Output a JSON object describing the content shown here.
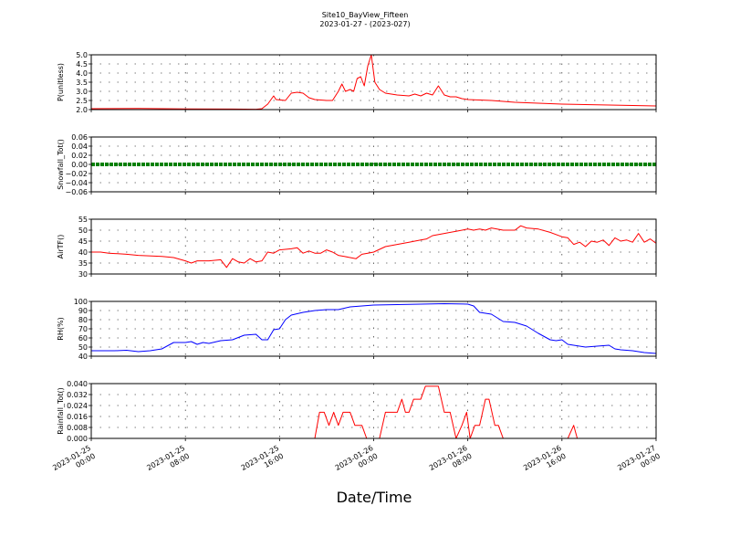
{
  "chart_data": {
    "type": "line",
    "title": "Site10_BayView_Fifteen",
    "subtitle": "2023-01-27 - (2023-027)",
    "xlabel": "Date/Time",
    "xlim": [
      "2023-01-25 00:00",
      "2023-01-27 00:00"
    ],
    "grid": true,
    "x_ticks": [
      {
        "value": 0,
        "line1": "2023-01-25",
        "line2": "00:00"
      },
      {
        "value": 8,
        "line1": "2023-01-25",
        "line2": "08:00"
      },
      {
        "value": 16,
        "line1": "2023-01-25",
        "line2": "16:00"
      },
      {
        "value": 24,
        "line1": "2023-01-26",
        "line2": "00:00"
      },
      {
        "value": 32,
        "line1": "2023-01-26",
        "line2": "08:00"
      },
      {
        "value": 40,
        "line1": "2023-01-26",
        "line2": "16:00"
      },
      {
        "value": 48,
        "line1": "2023-01-27",
        "line2": "00:00"
      }
    ],
    "panels": [
      {
        "ylabel": "P(unitless)",
        "ylim": [
          2.0,
          5.0
        ],
        "yticks": [
          "2.0",
          "2.5",
          "3.0",
          "3.5",
          "4.0",
          "4.5",
          "5.0"
        ],
        "color": "#ff0000",
        "marker": "line",
        "points": [
          [
            0,
            2.05
          ],
          [
            4,
            2.06
          ],
          [
            8,
            2.04
          ],
          [
            12,
            2.03
          ],
          [
            14,
            2.02
          ],
          [
            14.5,
            2.05
          ],
          [
            15,
            2.3
          ],
          [
            15.5,
            2.75
          ],
          [
            15.7,
            2.55
          ],
          [
            16.5,
            2.5
          ],
          [
            17,
            2.9
          ],
          [
            17.5,
            2.95
          ],
          [
            18,
            2.9
          ],
          [
            18.5,
            2.65
          ],
          [
            19,
            2.55
          ],
          [
            20,
            2.5
          ],
          [
            20.5,
            2.5
          ],
          [
            21,
            3.0
          ],
          [
            21.3,
            3.4
          ],
          [
            21.6,
            3.0
          ],
          [
            22,
            3.1
          ],
          [
            22.3,
            3.0
          ],
          [
            22.6,
            3.7
          ],
          [
            22.9,
            3.8
          ],
          [
            23.2,
            3.3
          ],
          [
            23.5,
            4.4
          ],
          [
            23.8,
            5.0
          ],
          [
            24.1,
            3.5
          ],
          [
            24.5,
            3.1
          ],
          [
            25,
            2.9
          ],
          [
            26,
            2.8
          ],
          [
            27,
            2.75
          ],
          [
            27.5,
            2.85
          ],
          [
            28,
            2.75
          ],
          [
            28.5,
            2.9
          ],
          [
            29,
            2.8
          ],
          [
            29.5,
            3.3
          ],
          [
            30,
            2.8
          ],
          [
            30.5,
            2.7
          ],
          [
            31,
            2.7
          ],
          [
            31.5,
            2.6
          ],
          [
            32,
            2.55
          ],
          [
            34,
            2.5
          ],
          [
            36,
            2.4
          ],
          [
            40,
            2.3
          ],
          [
            44,
            2.25
          ],
          [
            48,
            2.2
          ]
        ]
      },
      {
        "ylabel": "Snowfall_Tot()",
        "ylim": [
          -0.06,
          0.06
        ],
        "yticks": [
          "−0.06",
          "−0.04",
          "−0.02",
          "0.00",
          "0.02",
          "0.04",
          "0.06"
        ],
        "color": "#008000",
        "marker": "dots",
        "points": [
          [
            0,
            0.0
          ],
          [
            48,
            0.0
          ]
        ]
      },
      {
        "ylabel": "AirTF()",
        "ylim": [
          30,
          55
        ],
        "yticks": [
          "30",
          "35",
          "40",
          "45",
          "50",
          "55"
        ],
        "color": "#ff0000",
        "marker": "line",
        "points": [
          [
            0,
            40
          ],
          [
            0.8,
            40
          ],
          [
            1.5,
            39.5
          ],
          [
            3,
            39
          ],
          [
            4,
            38.5
          ],
          [
            6,
            38
          ],
          [
            7,
            37.5
          ],
          [
            8,
            36
          ],
          [
            8.5,
            35
          ],
          [
            9,
            36
          ],
          [
            10,
            36
          ],
          [
            11,
            36.5
          ],
          [
            11.5,
            33
          ],
          [
            12,
            37
          ],
          [
            12.5,
            35.5
          ],
          [
            13,
            35
          ],
          [
            13.5,
            37
          ],
          [
            14,
            35.5
          ],
          [
            14.5,
            36
          ],
          [
            15,
            40
          ],
          [
            15.5,
            39.5
          ],
          [
            16,
            41
          ],
          [
            17,
            41.5
          ],
          [
            17.5,
            42
          ],
          [
            18,
            39.5
          ],
          [
            18.5,
            40.5
          ],
          [
            19,
            39.5
          ],
          [
            19.5,
            39.5
          ],
          [
            20,
            41
          ],
          [
            20.5,
            40
          ],
          [
            21,
            38.5
          ],
          [
            21.5,
            38
          ],
          [
            22,
            37.5
          ],
          [
            22.5,
            37
          ],
          [
            23,
            39
          ],
          [
            23.5,
            39.5
          ],
          [
            24,
            40
          ],
          [
            25,
            42.5
          ],
          [
            26,
            43.5
          ],
          [
            27,
            44.5
          ],
          [
            28,
            45.5
          ],
          [
            28.5,
            46
          ],
          [
            29,
            47.5
          ],
          [
            30,
            48.5
          ],
          [
            31,
            49.5
          ],
          [
            32,
            50.5
          ],
          [
            32.5,
            50
          ],
          [
            33,
            50.5
          ],
          [
            33.5,
            50
          ],
          [
            34,
            51
          ],
          [
            35,
            50
          ],
          [
            36,
            50
          ],
          [
            36.5,
            52
          ],
          [
            37,
            51
          ],
          [
            38,
            50.5
          ],
          [
            39,
            49
          ],
          [
            40,
            47
          ],
          [
            40.5,
            46.5
          ],
          [
            41,
            43.5
          ],
          [
            41.5,
            44.5
          ],
          [
            42,
            42.5
          ],
          [
            42.5,
            45
          ],
          [
            43,
            44.5
          ],
          [
            43.5,
            45.5
          ],
          [
            44,
            43
          ],
          [
            44.5,
            46.5
          ],
          [
            45,
            45
          ],
          [
            45.5,
            45.5
          ],
          [
            46,
            44.5
          ],
          [
            46.5,
            48.5
          ],
          [
            47,
            44.5
          ],
          [
            47.5,
            46
          ],
          [
            48,
            44
          ]
        ],
        "note": "x in hours after 2023-01-25 00:00"
      },
      {
        "ylabel": "RH(%)",
        "ylim": [
          40,
          100
        ],
        "yticks": [
          "40",
          "50",
          "60",
          "70",
          "80",
          "90",
          "100"
        ],
        "color": "#0000ff",
        "marker": "line",
        "points": [
          [
            0,
            46
          ],
          [
            2,
            46
          ],
          [
            3,
            46.5
          ],
          [
            4,
            45
          ],
          [
            5,
            46
          ],
          [
            6,
            48
          ],
          [
            7,
            55
          ],
          [
            8,
            55
          ],
          [
            8.5,
            56
          ],
          [
            9,
            53
          ],
          [
            9.5,
            55
          ],
          [
            10,
            54
          ],
          [
            11,
            57
          ],
          [
            12,
            58
          ],
          [
            13,
            63
          ],
          [
            14,
            64
          ],
          [
            14.5,
            58
          ],
          [
            15,
            58
          ],
          [
            15.5,
            69
          ],
          [
            16,
            70
          ],
          [
            16.5,
            80
          ],
          [
            17,
            85
          ],
          [
            18,
            88
          ],
          [
            19,
            90
          ],
          [
            20,
            91
          ],
          [
            21,
            91
          ],
          [
            22,
            94
          ],
          [
            23,
            95
          ],
          [
            24,
            96
          ],
          [
            26,
            96.5
          ],
          [
            28,
            97
          ],
          [
            30,
            97.5
          ],
          [
            32,
            97
          ],
          [
            32.5,
            95
          ],
          [
            33,
            88
          ],
          [
            34,
            86
          ],
          [
            35,
            78
          ],
          [
            36,
            77
          ],
          [
            37,
            73
          ],
          [
            38,
            65
          ],
          [
            39,
            58
          ],
          [
            39.5,
            57
          ],
          [
            40,
            58
          ],
          [
            40.5,
            53
          ],
          [
            41,
            52
          ],
          [
            42,
            50
          ],
          [
            43,
            51
          ],
          [
            44,
            52
          ],
          [
            44.5,
            48
          ],
          [
            45,
            47
          ],
          [
            46,
            46
          ],
          [
            47,
            44
          ],
          [
            48,
            43
          ],
          [
            49,
            44
          ],
          [
            50,
            47
          ],
          [
            51,
            48
          ],
          [
            52,
            52
          ]
        ]
      },
      {
        "ylabel": "Rainfall_Tot()",
        "ylim": [
          0.0,
          0.042
        ],
        "yticks": [
          "0.000",
          "0.008",
          "0.016",
          "0.024",
          "0.032",
          "0.040"
        ],
        "color": "#ff0000",
        "marker": "line",
        "points": [
          [
            0,
            0
          ],
          [
            19,
            0
          ],
          [
            19.4,
            0.02
          ],
          [
            19.8,
            0.02
          ],
          [
            20.2,
            0.01
          ],
          [
            20.6,
            0.02
          ],
          [
            21,
            0.01
          ],
          [
            21.4,
            0.02
          ],
          [
            22,
            0.02
          ],
          [
            22.4,
            0.01
          ],
          [
            23,
            0.01
          ],
          [
            23.4,
            0
          ],
          [
            24.5,
            0
          ],
          [
            25,
            0.02
          ],
          [
            25.5,
            0.02
          ],
          [
            26,
            0.02
          ],
          [
            26.4,
            0.03
          ],
          [
            26.7,
            0.02
          ],
          [
            27,
            0.02
          ],
          [
            27.4,
            0.03
          ],
          [
            28,
            0.03
          ],
          [
            28.4,
            0.04
          ],
          [
            29,
            0.04
          ],
          [
            29.5,
            0.04
          ],
          [
            30,
            0.02
          ],
          [
            30.5,
            0.02
          ],
          [
            31,
            0
          ],
          [
            31.5,
            0.01
          ],
          [
            31.9,
            0.02
          ],
          [
            32.2,
            0
          ],
          [
            32.6,
            0.01
          ],
          [
            33,
            0.01
          ],
          [
            33.5,
            0.03
          ],
          [
            33.8,
            0.03
          ],
          [
            34.3,
            0.01
          ],
          [
            34.6,
            0.01
          ],
          [
            35,
            0
          ],
          [
            40.5,
            0
          ],
          [
            41,
            0.01
          ],
          [
            41.3,
            0
          ],
          [
            48,
            0
          ]
        ]
      }
    ]
  }
}
